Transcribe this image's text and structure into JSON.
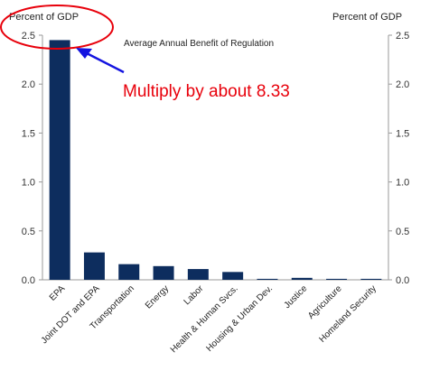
{
  "chart_data": {
    "type": "bar",
    "title": "Average Annual Benefit of Regulation",
    "ylabel_left": "Percent of GDP",
    "ylabel_right": "Percent of GDP",
    "categories": [
      "EPA",
      "Joint DOT and EPA",
      "Transportation",
      "Energy",
      "Labor",
      "Health & Human Svcs.",
      "Housing & Urban Dev.",
      "Justice",
      "Agriculture",
      "Homeland Security"
    ],
    "values": [
      2.45,
      0.28,
      0.16,
      0.14,
      0.11,
      0.08,
      0.01,
      0.02,
      0.01,
      0.01
    ],
    "ylim": [
      0,
      2.5
    ],
    "yticks": [
      "0.0",
      "0.5",
      "1.0",
      "1.5",
      "2.0",
      "2.5"
    ],
    "grid": false,
    "bar_color": "#0d2d5e"
  },
  "annotation": {
    "text": "Multiply by about 8.33",
    "color": "#e8000b",
    "arrow_color": "#1414e0",
    "circle_color": "#e8000b"
  }
}
